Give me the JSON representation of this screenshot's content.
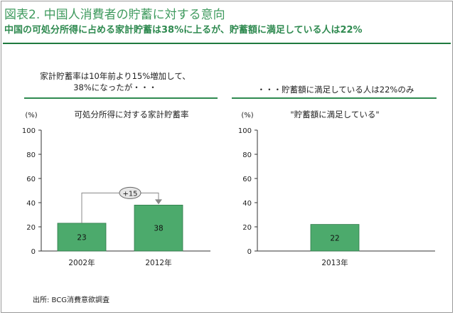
{
  "header": {
    "title": "図表2. 中国人消費者の貯蓄に対する意向",
    "subtitle": "中国の可処分所得に占める家計貯蓄は38%に上るが、貯蓄額に満足している人は22%"
  },
  "panels": [
    {
      "head_line1": "家計貯蓄率は10年前より15%増加して、",
      "head_line2": "38%になったが・・・"
    },
    {
      "head_line1": "・・・貯蓄額に満足している人は22%のみ",
      "head_line2": ""
    }
  ],
  "footer": {
    "source": "出所: BCG消費意欲調査"
  },
  "colors": {
    "accent": "#3f9a5e",
    "bar": "#4caa6c",
    "rule": "#1f7a3f"
  },
  "chart_data": [
    {
      "type": "bar",
      "title": "可処分所得に対する家計貯蓄率",
      "unit_label": "(%)",
      "categories": [
        "2002年",
        "2012年"
      ],
      "values": [
        23,
        38
      ],
      "ylim": [
        0,
        100
      ],
      "yticks": [
        0,
        20,
        40,
        60,
        80,
        100
      ],
      "annotation": "+15",
      "grid": false
    },
    {
      "type": "bar",
      "title": "\"貯蓄額に満足している\"",
      "unit_label": "(%)",
      "categories": [
        "2013年"
      ],
      "values": [
        22
      ],
      "ylim": [
        0,
        100
      ],
      "yticks": [
        0,
        20,
        40,
        60,
        80,
        100
      ],
      "grid": false
    }
  ]
}
